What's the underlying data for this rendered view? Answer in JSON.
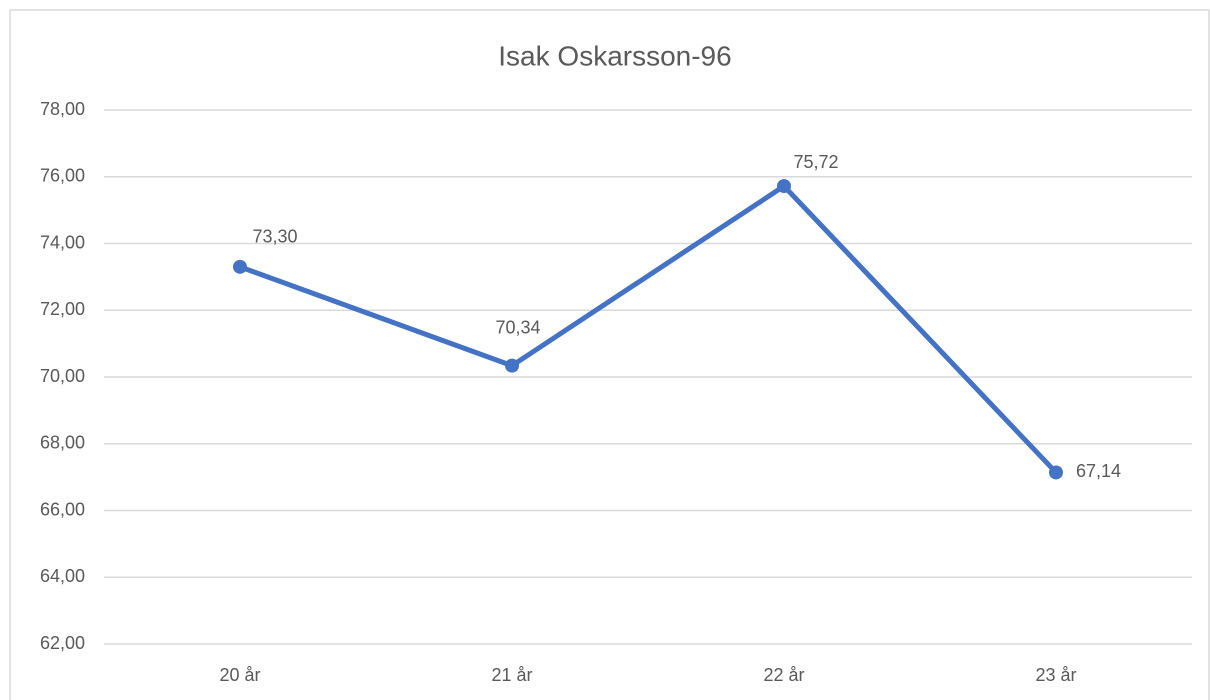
{
  "chart_data": {
    "type": "line",
    "title": "Isak Oskarsson-96",
    "categories": [
      "20 år",
      "21 år",
      "22 år",
      "23 år"
    ],
    "series": [
      {
        "color": "#4472c4",
        "values": [
          73.3,
          70.34,
          75.72,
          67.14
        ],
        "value_labels": [
          "73,30",
          "70,34",
          "75,72",
          "67,14"
        ]
      }
    ],
    "ylim": [
      62,
      78
    ],
    "yticks": [
      {
        "value": 62,
        "label": "62,00"
      },
      {
        "value": 64,
        "label": "64,00"
      },
      {
        "value": 66,
        "label": "66,00"
      },
      {
        "value": 68,
        "label": "68,00"
      },
      {
        "value": 70,
        "label": "70,00"
      },
      {
        "value": 72,
        "label": "72,00"
      },
      {
        "value": 74,
        "label": "74,00"
      },
      {
        "value": 76,
        "label": "76,00"
      },
      {
        "value": 78,
        "label": "78,00"
      }
    ],
    "grid": true
  }
}
